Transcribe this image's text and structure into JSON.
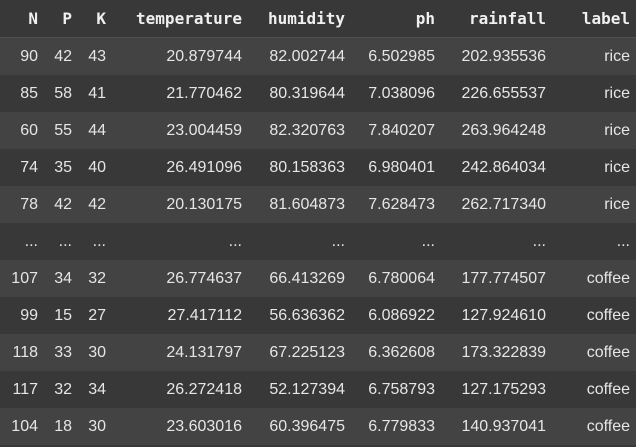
{
  "table": {
    "columns": [
      "N",
      "P",
      "K",
      "temperature",
      "humidity",
      "ph",
      "rainfall",
      "label"
    ],
    "rows": [
      [
        "90",
        "42",
        "43",
        "20.879744",
        "82.002744",
        "6.502985",
        "202.935536",
        "rice"
      ],
      [
        "85",
        "58",
        "41",
        "21.770462",
        "80.319644",
        "7.038096",
        "226.655537",
        "rice"
      ],
      [
        "60",
        "55",
        "44",
        "23.004459",
        "82.320763",
        "7.840207",
        "263.964248",
        "rice"
      ],
      [
        "74",
        "35",
        "40",
        "26.491096",
        "80.158363",
        "6.980401",
        "242.864034",
        "rice"
      ],
      [
        "78",
        "42",
        "42",
        "20.130175",
        "81.604873",
        "7.628473",
        "262.717340",
        "rice"
      ],
      [
        "...",
        "...",
        "...",
        "...",
        "...",
        "...",
        "...",
        "..."
      ],
      [
        "107",
        "34",
        "32",
        "26.774637",
        "66.413269",
        "6.780064",
        "177.774507",
        "coffee"
      ],
      [
        "99",
        "15",
        "27",
        "27.417112",
        "56.636362",
        "6.086922",
        "127.924610",
        "coffee"
      ],
      [
        "118",
        "33",
        "30",
        "24.131797",
        "67.225123",
        "6.362608",
        "173.322839",
        "coffee"
      ],
      [
        "117",
        "32",
        "34",
        "26.272418",
        "52.127394",
        "6.758793",
        "127.175293",
        "coffee"
      ],
      [
        "104",
        "18",
        "30",
        "23.603016",
        "60.396475",
        "6.779833",
        "140.937041",
        "coffee"
      ]
    ]
  }
}
